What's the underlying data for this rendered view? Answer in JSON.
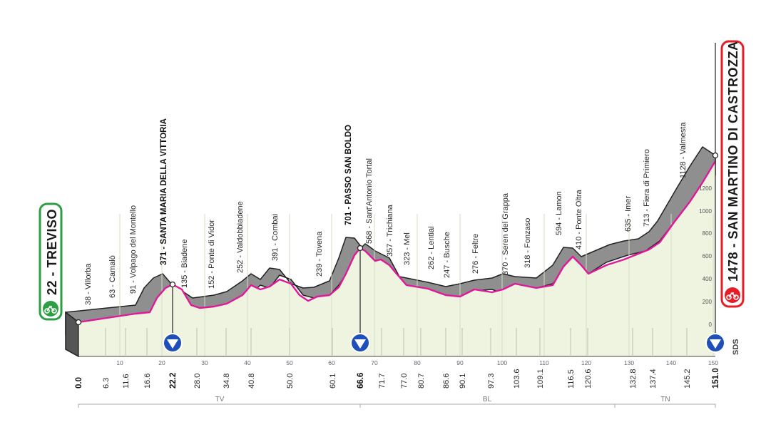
{
  "stage": {
    "start_label": "22 - TREVISO",
    "finish_label": "1478 - SAN MARTINO DI CASTROZZA",
    "sds_label": "SDS",
    "regions": [
      "TV",
      "BL",
      "TN"
    ]
  },
  "axis": {
    "grid_km": [
      "10",
      "20",
      "30",
      "40",
      "50",
      "60",
      "70",
      "80",
      "90",
      "100",
      "110",
      "120",
      "130",
      "140",
      "150"
    ],
    "alt_ticks": [
      "0",
      "200",
      "400",
      "600",
      "800",
      "1000",
      "1200"
    ],
    "km_labels": [
      {
        "km": "0.0",
        "bold": true
      },
      {
        "km": "6.3"
      },
      {
        "km": "11.6"
      },
      {
        "km": "16.6"
      },
      {
        "km": "22.2",
        "bold": true
      },
      {
        "km": "28.0"
      },
      {
        "km": "34.8"
      },
      {
        "km": "40.8"
      },
      {
        "km": "50.0"
      },
      {
        "km": "60.1"
      },
      {
        "km": "66.6",
        "bold": true
      },
      {
        "km": "71.7"
      },
      {
        "km": "77.0"
      },
      {
        "km": "80.7"
      },
      {
        "km": "86.6"
      },
      {
        "km": "90.1"
      },
      {
        "km": "97.3"
      },
      {
        "km": "103.6"
      },
      {
        "km": "109.1"
      },
      {
        "km": "116.5"
      },
      {
        "km": "120.6"
      },
      {
        "km": "132.8"
      },
      {
        "km": "137.4"
      },
      {
        "km": "145.2"
      },
      {
        "km": "151.0",
        "bold": true
      }
    ]
  },
  "waypoints": [
    {
      "label": "38 - Villorba"
    },
    {
      "label": "63 - Camalò"
    },
    {
      "label": "91 - Volpago del Montello"
    },
    {
      "label": "371 - SANTA MARIA DELLA VITTORIA",
      "bold": true
    },
    {
      "label": "135 - Biadene"
    },
    {
      "label": "152 - Ponte di Vidor"
    },
    {
      "label": "252 - Valdobbiadene"
    },
    {
      "label": "391 - Combai"
    },
    {
      "label": "239 - Tovena"
    },
    {
      "label": "701 - PASSO SAN BOLDO",
      "bold": true
    },
    {
      "label": "568 - Sant'Antonio Tortal"
    },
    {
      "label": "357 - Trichiana"
    },
    {
      "label": "323 - Mel"
    },
    {
      "label": "262 - Lentiai"
    },
    {
      "label": "247 - Busche"
    },
    {
      "label": "276 - Feltre"
    },
    {
      "label": "370 - Seren del Grappa"
    },
    {
      "label": "318 - Fonzaso"
    },
    {
      "label": "594 - Lamon"
    },
    {
      "label": "410 - Ponte Oltra"
    },
    {
      "label": "635 - Imer"
    },
    {
      "label": "713 - Fiera di Primiero"
    },
    {
      "label": "1128 - Valmesta"
    }
  ],
  "colors": {
    "profile_fill": "#eef4e0",
    "ridge_fill": "#8f8f8f",
    "profile_line": "#e0189a",
    "start_green": "#2e9e44",
    "finish_red": "#e41e26",
    "marker_blue": "#1f4fb8"
  }
}
